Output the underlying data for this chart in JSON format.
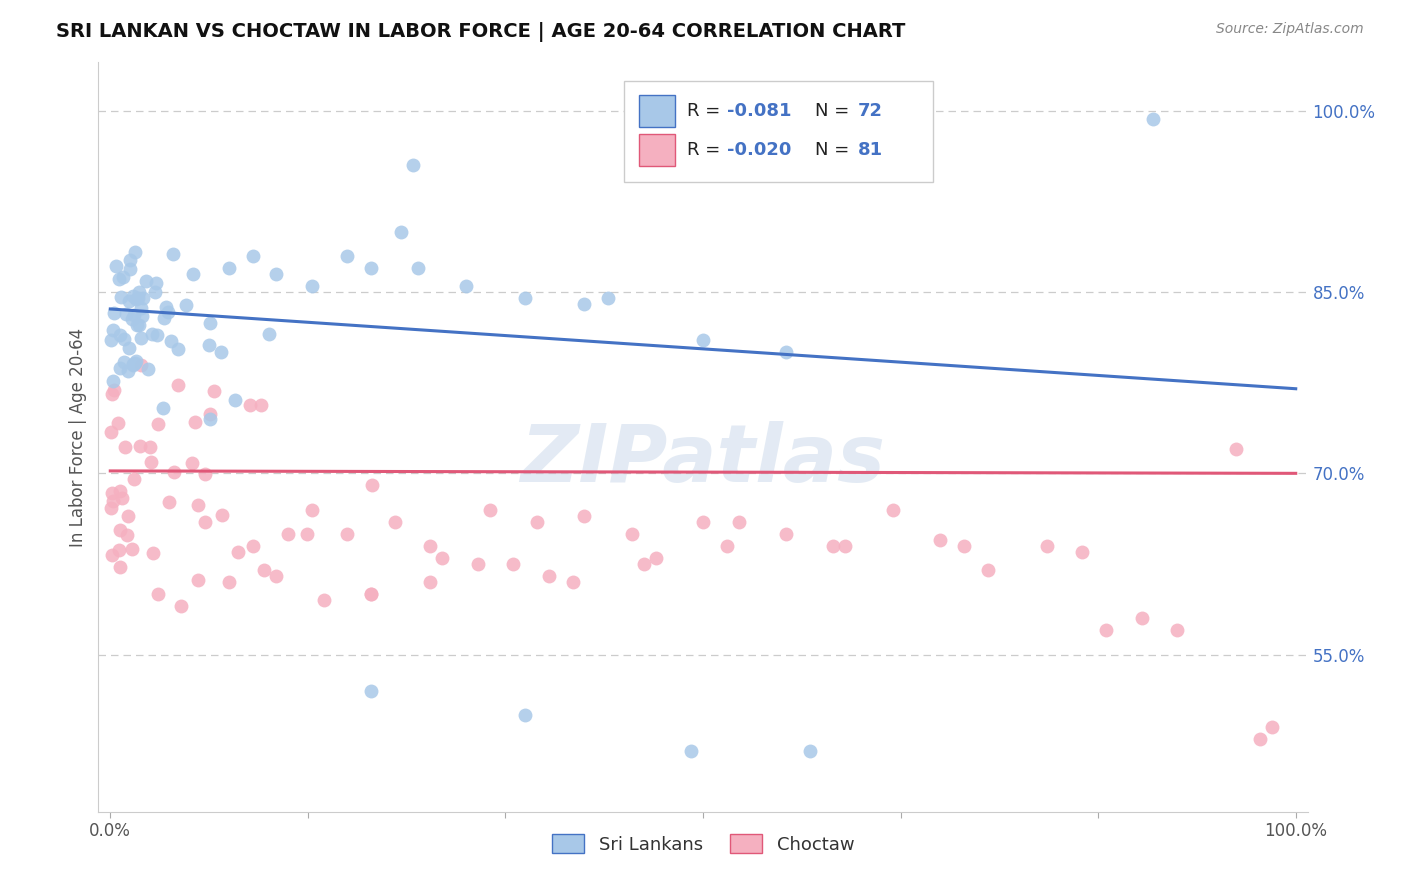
{
  "title": "SRI LANKAN VS CHOCTAW IN LABOR FORCE | AGE 20-64 CORRELATION CHART",
  "source": "Source: ZipAtlas.com",
  "ylabel": "In Labor Force | Age 20-64",
  "xlim": [
    -0.01,
    1.01
  ],
  "ylim": [
    0.42,
    1.04
  ],
  "yticks": [
    0.55,
    0.7,
    0.85,
    1.0
  ],
  "ytick_labels": [
    "55.0%",
    "70.0%",
    "85.0%",
    "100.0%"
  ],
  "xticks": [
    0.0,
    0.1667,
    0.3333,
    0.5,
    0.6667,
    0.8333,
    1.0
  ],
  "xtick_labels": [
    "0.0%",
    "",
    "",
    "",
    "",
    "",
    "100.0%"
  ],
  "sri_lankan_R": -0.081,
  "sri_lankan_N": 72,
  "choctaw_R": -0.02,
  "choctaw_N": 81,
  "sri_lankan_color": "#a8c8e8",
  "choctaw_color": "#f5b0c0",
  "sri_lankan_line_color": "#4472c4",
  "choctaw_line_color": "#e05878",
  "legend_label_sri": "Sri Lankans",
  "legend_label_choc": "Choctaw",
  "watermark": "ZIPatlas",
  "background_color": "#ffffff",
  "grid_color": "#cccccc",
  "title_fontsize": 14,
  "sri_trend_x0": 0.0,
  "sri_trend_y0": 0.836,
  "sri_trend_x1": 1.0,
  "sri_trend_y1": 0.77,
  "choc_trend_x0": 0.0,
  "choc_trend_y0": 0.702,
  "choc_trend_x1": 1.0,
  "choc_trend_y1": 0.7
}
